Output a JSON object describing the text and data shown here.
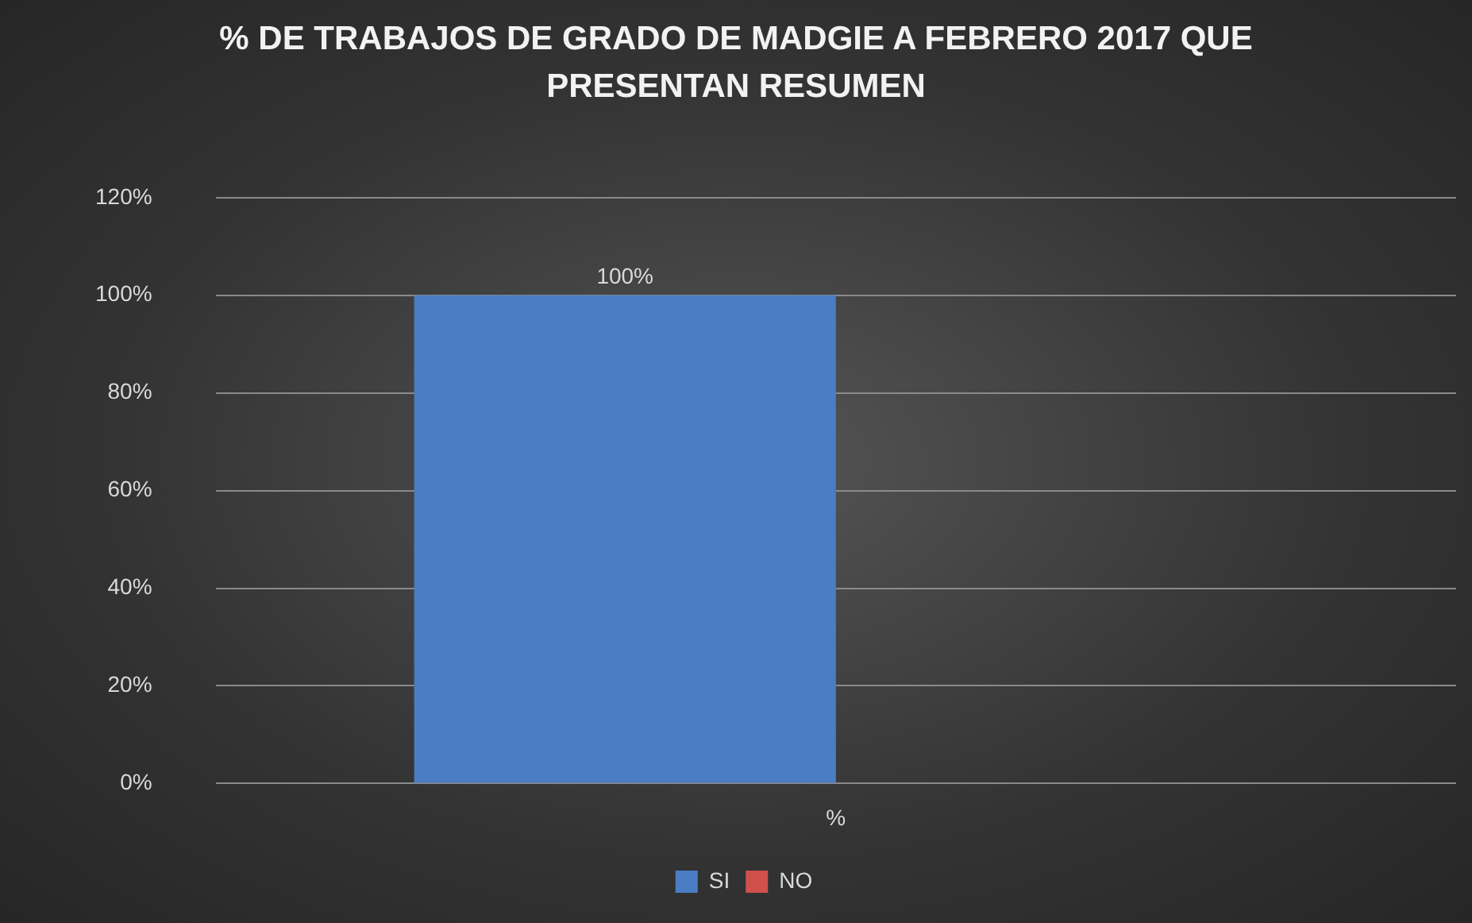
{
  "chart_data": {
    "type": "bar",
    "title": "% DE TRABAJOS DE GRADO DE MADGIE A FEBRERO 2017 QUE PRESENTAN RESUMEN",
    "categories": [
      "%"
    ],
    "series": [
      {
        "name": "SI",
        "color": "#4a7dc4",
        "values": [
          100
        ],
        "value_labels": [
          "100%"
        ]
      },
      {
        "name": "NO",
        "color": "#d0504c",
        "values": [
          0
        ],
        "value_labels": [
          null
        ]
      }
    ],
    "ylim": [
      0,
      120
    ],
    "yticks": [
      {
        "value": 0,
        "label": "0%"
      },
      {
        "value": 20,
        "label": "20%"
      },
      {
        "value": 40,
        "label": "40%"
      },
      {
        "value": 60,
        "label": "60%"
      },
      {
        "value": 80,
        "label": "80%"
      },
      {
        "value": 100,
        "label": "100%"
      },
      {
        "value": 120,
        "label": "120%"
      }
    ],
    "grid": "y",
    "legend": "bottom"
  }
}
